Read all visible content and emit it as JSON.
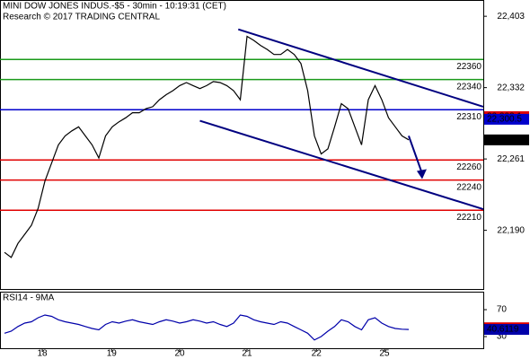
{
  "chart_data": {
    "type": "line",
    "title": "MINI DOW JONES INDUS.-$5 - 30min - 10:19:31 (CET)",
    "subtitle": "Research © 2017 TRADING CENTRAL",
    "xlim": [
      -0.67,
      71.07
    ],
    "xticks": [
      {
        "value": 5.6,
        "label": "18"
      },
      {
        "value": 15.9,
        "label": "19"
      },
      {
        "value": 26,
        "label": "20"
      },
      {
        "value": 36,
        "label": "21"
      },
      {
        "value": 46.3,
        "label": "22"
      },
      {
        "value": 56.4,
        "label": "25"
      }
    ],
    "ylim": [
      22131.6,
      22419.2
    ],
    "yticks": [
      {
        "value": 22403,
        "label": "22,403"
      },
      {
        "value": 22332,
        "label": "22,332"
      },
      {
        "value": 22261,
        "label": "22,261"
      },
      {
        "value": 22190,
        "label": "22,190"
      }
    ],
    "series": [
      {
        "name": "price",
        "color": "#000000",
        "values": [
          22168,
          22163,
          22177,
          22186,
          22195,
          22212,
          22239,
          22257,
          22275,
          22284,
          22289,
          22293,
          22284,
          22275,
          22262,
          22284,
          22293,
          22298,
          22302,
          22307,
          22307,
          22311,
          22313,
          22320,
          22325,
          22329,
          22334,
          22337,
          22334,
          22331,
          22334,
          22338,
          22337,
          22334,
          22329,
          22320,
          22383,
          22379,
          22374,
          22370,
          22365,
          22365,
          22370,
          22365,
          22356,
          22329,
          22284,
          22266,
          22271,
          22293,
          22316,
          22311,
          22293,
          22275,
          22320,
          22334,
          22320,
          22302,
          22293,
          22284,
          22280
        ],
        "value_labels": {
          "60": "22,280"
        }
      }
    ],
    "levels": [
      {
        "value": 22360,
        "color": "#1a9a1a"
      },
      {
        "value": 22340,
        "color": "#1a9a1a"
      },
      {
        "value": 22310,
        "color": "#0000cc"
      },
      {
        "value": 22260,
        "color": "#e00000"
      },
      {
        "value": 22240,
        "color": "#e00000"
      },
      {
        "value": 22210,
        "color": "#e00000"
      }
    ],
    "price_tags": [
      {
        "value": 22303.1,
        "label": "22,303.1",
        "color": "#e00000"
      },
      {
        "value": 22300.5,
        "label": "22,300.5",
        "color": "#0000cc"
      }
    ],
    "channel": {
      "color": "#000080",
      "lines": [
        {
          "x": [
            34.7,
            71.07
          ],
          "y": [
            22390,
            22313
          ]
        },
        {
          "x": [
            29,
            71.07
          ],
          "y": [
            22299,
            22211
          ]
        }
      ],
      "arrow": {
        "x": [
          60,
          62
        ],
        "y": [
          22284,
          22241
        ]
      }
    },
    "rsi": {
      "title": "RSI14 - 9MA",
      "ylim": [
        12.7,
        96.7
      ],
      "yticks": [
        70,
        30
      ],
      "color": "#0000aa",
      "values": [
        35,
        38,
        45,
        50,
        52,
        58,
        62,
        60,
        55,
        52,
        50,
        48,
        45,
        42,
        40,
        48,
        52,
        50,
        53,
        55,
        52,
        50,
        48,
        52,
        55,
        53,
        50,
        52,
        55,
        53,
        50,
        52,
        48,
        45,
        50,
        62,
        60,
        55,
        52,
        50,
        48,
        52,
        50,
        45,
        40,
        35,
        25,
        30,
        38,
        45,
        55,
        52,
        45,
        40,
        55,
        58,
        50,
        45,
        42,
        41,
        40.6119
      ],
      "ma_last": 43.128,
      "ma_color": "#e00000"
    }
  }
}
